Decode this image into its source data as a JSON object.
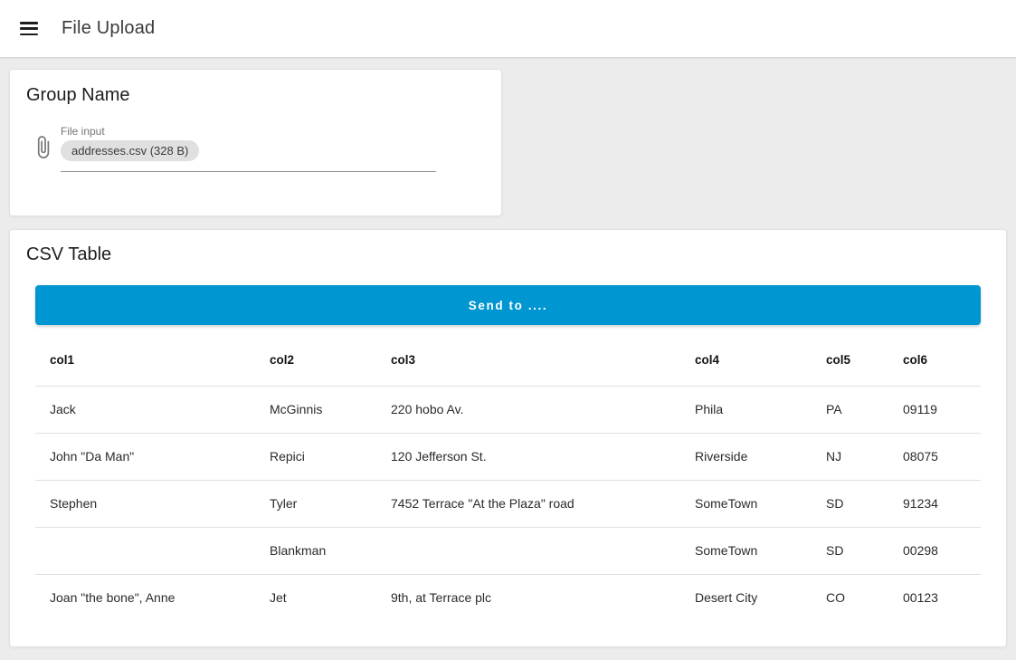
{
  "app_bar": {
    "title": "File Upload"
  },
  "upload_card": {
    "title": "Group Name",
    "file_input": {
      "label": "File input",
      "chip": "addresses.csv (328 B)"
    }
  },
  "table_card": {
    "title": "CSV Table",
    "send_button_label": "Send to ....",
    "table": {
      "headers": [
        "col1",
        "col2",
        "col3",
        "col4",
        "col5",
        "col6"
      ],
      "rows": [
        [
          "Jack",
          "McGinnis",
          "220 hobo Av.",
          "Phila",
          "PA",
          "09119"
        ],
        [
          "John \"Da Man\"",
          "Repici",
          "120 Jefferson St.",
          "Riverside",
          "NJ",
          "08075"
        ],
        [
          "Stephen",
          "Tyler",
          "7452 Terrace \"At the Plaza\" road",
          "SomeTown",
          "SD",
          "91234"
        ],
        [
          "",
          "Blankman",
          "",
          "SomeTown",
          "SD",
          "00298"
        ],
        [
          "Joan \"the bone\", Anne",
          "Jet",
          "9th, at Terrace plc",
          "Desert City",
          "CO",
          "00123"
        ]
      ]
    }
  },
  "icons": {
    "menu": "hamburger-menu-icon",
    "attachment": "paperclip-icon"
  },
  "colors": {
    "button_blue": "#0096d2",
    "chip_bg": "#e0e0e0",
    "page_bg": "#ececec",
    "appbar_bg": "#ffffff"
  }
}
